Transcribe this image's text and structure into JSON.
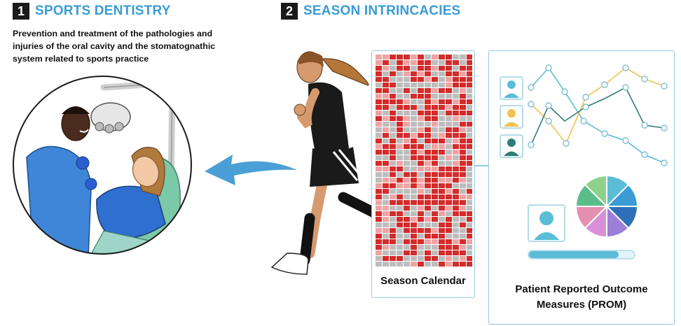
{
  "section1": {
    "number": "1",
    "title": "SPORTS DENTISTRY",
    "description": "Prevention and treatment of the pathologies and injuries of the oral cavity and the stomatognathic system related to sports practice"
  },
  "section2": {
    "number": "2",
    "title": "SEASON INTRINCACIES"
  },
  "calendar": {
    "label": "Season Calendar",
    "colors": {
      "red": "#d42b2b",
      "pink": "#f0a3a3",
      "gray": "#bdbdbd"
    }
  },
  "prom": {
    "label_line1": "Patient Reported Outcome",
    "label_line2": "Measures (PROM)",
    "colors": {
      "teal_light": "#5bbcd6",
      "yellow": "#f2c14e",
      "teal_dark": "#2f7d7a"
    },
    "pie_colors": [
      "#5bbcd6",
      "#3a9bd5",
      "#2e6fb7",
      "#9c7fd6",
      "#d98fd8",
      "#e58fb0",
      "#5bbd8a",
      "#8fd18a"
    ]
  },
  "icons": {
    "dentist_scene": "dentist-treating-patient-illustration",
    "runner": "female-runner-illustration",
    "arrow": "curved-arrow-icon",
    "user": "user-avatar-icon"
  }
}
